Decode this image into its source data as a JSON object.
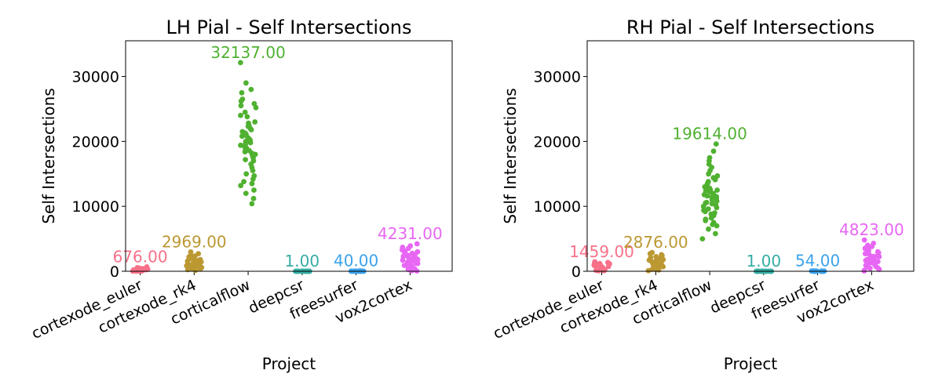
{
  "chart_data": [
    {
      "type": "scatter",
      "title": "LH Pial - Self Intersections",
      "xlabel": "Project",
      "ylabel": "Self Intersections",
      "ylim": [
        0,
        35500
      ],
      "yticks": [
        0,
        10000,
        20000,
        30000
      ],
      "grid": false,
      "categories": [
        "cortexode_euler",
        "cortexode_rk4",
        "corticalflow",
        "deepcsr",
        "freesurfer",
        "vox2cortex"
      ],
      "colors": [
        "#f77189",
        "#bb9832",
        "#50b131",
        "#36ada4",
        "#3ba3ec",
        "#e866f4"
      ],
      "series": [
        {
          "category": "cortexode_euler",
          "max_label": "676.00",
          "max": 676,
          "values": [
            676,
            560,
            480,
            410,
            350,
            300,
            260,
            220,
            190,
            160,
            130,
            110,
            90,
            70,
            50,
            40,
            30,
            20,
            10,
            5,
            340,
            280,
            240,
            200,
            150
          ]
        },
        {
          "category": "cortexode_rk4",
          "max_label": "2969.00",
          "max": 2969,
          "values": [
            2969,
            2700,
            2500,
            2350,
            2200,
            2050,
            1950,
            1850,
            1750,
            1650,
            1550,
            1450,
            1350,
            1250,
            1150,
            1050,
            950,
            850,
            750,
            650,
            550,
            450,
            350,
            250,
            150,
            1800,
            1600,
            1400,
            1200,
            1000,
            900,
            800,
            700,
            600,
            500
          ]
        },
        {
          "category": "corticalflow",
          "max_label": "32137.00",
          "max": 32137,
          "values": [
            32137,
            29000,
            28000,
            27500,
            26500,
            26200,
            25800,
            25500,
            25200,
            24500,
            24000,
            23800,
            23000,
            22800,
            22500,
            22300,
            22000,
            21800,
            21500,
            21300,
            21100,
            21000,
            20800,
            20600,
            20400,
            20200,
            20000,
            19800,
            19600,
            19400,
            19200,
            19000,
            18800,
            18600,
            18400,
            18200,
            18000,
            17800,
            17500,
            17200,
            17000,
            16500,
            16000,
            15500,
            15000,
            14700,
            14200,
            13800,
            13500,
            13200,
            12500,
            12000,
            11200,
            10400
          ]
        },
        {
          "category": "deepcsr",
          "max_label": "1.00",
          "max": 1,
          "values": [
            1,
            0,
            0,
            0,
            0,
            0,
            1,
            0,
            0,
            0,
            0,
            0,
            1,
            0,
            0,
            0,
            0,
            0,
            0,
            0
          ]
        },
        {
          "category": "freesurfer",
          "max_label": "40.00",
          "max": 40,
          "values": [
            40,
            35,
            30,
            28,
            25,
            22,
            20,
            18,
            16,
            14,
            12,
            10,
            8,
            6,
            5,
            4,
            3,
            2,
            1,
            0,
            0,
            0
          ]
        },
        {
          "category": "vox2cortex",
          "max_label": "4231.00",
          "max": 4231,
          "values": [
            4231,
            3900,
            3700,
            3500,
            3300,
            3100,
            2900,
            2750,
            2600,
            2450,
            2300,
            2150,
            2000,
            1900,
            1800,
            1700,
            1600,
            1500,
            1400,
            1300,
            1200,
            1100,
            1000,
            900,
            800,
            700,
            600,
            500,
            400,
            300,
            200,
            100,
            50,
            3000,
            2500,
            1950,
            1250,
            650
          ]
        }
      ]
    },
    {
      "type": "scatter",
      "title": "RH Pial - Self Intersections",
      "xlabel": "Project",
      "ylabel": "Self Intersections",
      "ylim": [
        0,
        35500
      ],
      "yticks": [
        0,
        10000,
        20000,
        30000
      ],
      "grid": false,
      "categories": [
        "cortexode_euler",
        "cortexode_rk4",
        "corticalflow",
        "deepcsr",
        "freesurfer",
        "vox2cortex"
      ],
      "colors": [
        "#f77189",
        "#bb9832",
        "#50b131",
        "#36ada4",
        "#3ba3ec",
        "#e866f4"
      ],
      "series": [
        {
          "category": "cortexode_euler",
          "max_label": "1459.00",
          "max": 1459,
          "values": [
            1459,
            1350,
            1250,
            1150,
            1050,
            950,
            850,
            750,
            650,
            550,
            450,
            350,
            250,
            150,
            80,
            1200,
            1000,
            800,
            600,
            400,
            300,
            200,
            100,
            1100,
            900
          ]
        },
        {
          "category": "cortexode_rk4",
          "max_label": "2876.00",
          "max": 2876,
          "values": [
            2876,
            2700,
            2550,
            2400,
            2250,
            2100,
            1950,
            1800,
            1700,
            1600,
            1500,
            1400,
            1300,
            1200,
            1100,
            1000,
            900,
            800,
            700,
            600,
            500,
            400,
            300,
            200,
            100,
            2000,
            1750,
            1550,
            1350,
            1150,
            950,
            750,
            550
          ]
        },
        {
          "category": "corticalflow",
          "max_label": "19614.00",
          "max": 19614,
          "values": [
            19614,
            18500,
            17500,
            17000,
            16500,
            16000,
            15500,
            15000,
            14700,
            14400,
            14100,
            13800,
            13500,
            13200,
            13000,
            12800,
            12600,
            12400,
            12200,
            12000,
            11800,
            11600,
            11400,
            11200,
            11000,
            10800,
            10600,
            10400,
            10200,
            10000,
            9800,
            9600,
            9400,
            9200,
            9000,
            8800,
            8600,
            8400,
            8200,
            8000,
            7800,
            7500,
            7200,
            7000,
            6500,
            5800,
            5000,
            11500,
            12500,
            10500
          ]
        },
        {
          "category": "deepcsr",
          "max_label": "1.00",
          "max": 1,
          "values": [
            1,
            0,
            0,
            0,
            0,
            0,
            1,
            0,
            0,
            0,
            0,
            0,
            0,
            0,
            0,
            0,
            0,
            0,
            0
          ]
        },
        {
          "category": "freesurfer",
          "max_label": "54.00",
          "max": 54,
          "values": [
            54,
            48,
            42,
            38,
            34,
            30,
            26,
            22,
            18,
            15,
            12,
            10,
            8,
            6,
            4,
            3,
            2,
            1,
            0,
            0
          ]
        },
        {
          "category": "vox2cortex",
          "max_label": "4823.00",
          "max": 4823,
          "values": [
            4823,
            4300,
            4000,
            3800,
            3600,
            3400,
            3200,
            3000,
            2850,
            2700,
            2550,
            2400,
            2250,
            2100,
            1950,
            1800,
            1650,
            1500,
            1350,
            1200,
            1050,
            900,
            750,
            600,
            450,
            300,
            150,
            50,
            3500,
            2950,
            2300,
            1700,
            1100,
            500
          ]
        }
      ]
    }
  ]
}
